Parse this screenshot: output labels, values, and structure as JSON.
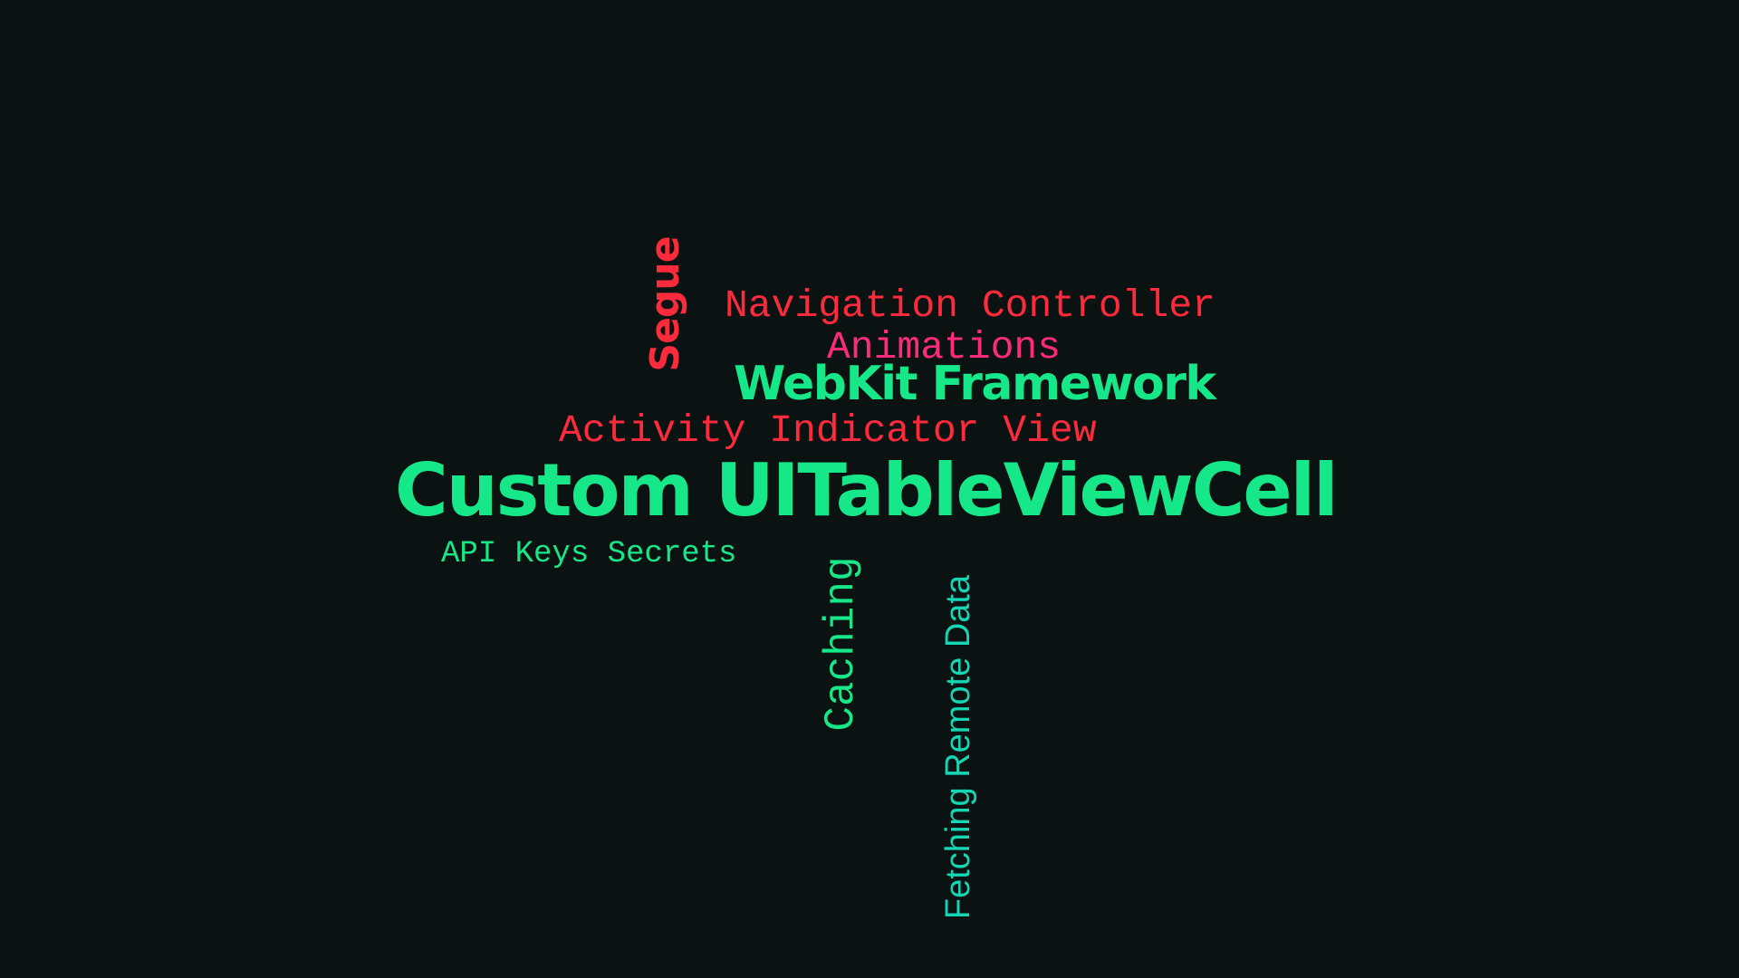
{
  "background_color": "#0a1212",
  "colors": {
    "green": "#16e88a",
    "red": "#ff2a3c",
    "pink": "#ff2a7a",
    "teal": "#14d6b4"
  },
  "words": {
    "custom_cell": {
      "text": "Custom UITableViewCell",
      "color": "#16e88a"
    },
    "webkit": {
      "text": "WebKit Framework",
      "color": "#16e88a"
    },
    "navigation": {
      "text": "Navigation Controller",
      "color": "#ff2a3c"
    },
    "animations": {
      "text": "Animations",
      "color": "#ff2a7a"
    },
    "activity": {
      "text": "Activity Indicator View",
      "color": "#ff2a3c"
    },
    "api_keys": {
      "text": "API Keys Secrets",
      "color": "#16e88a"
    },
    "segue": {
      "text": "Segue",
      "color": "#ff2a3c"
    },
    "caching": {
      "text": "Caching",
      "color": "#16e88a"
    },
    "fetching": {
      "text": "Fetching Remote Data",
      "color": "#14d6b4"
    }
  }
}
